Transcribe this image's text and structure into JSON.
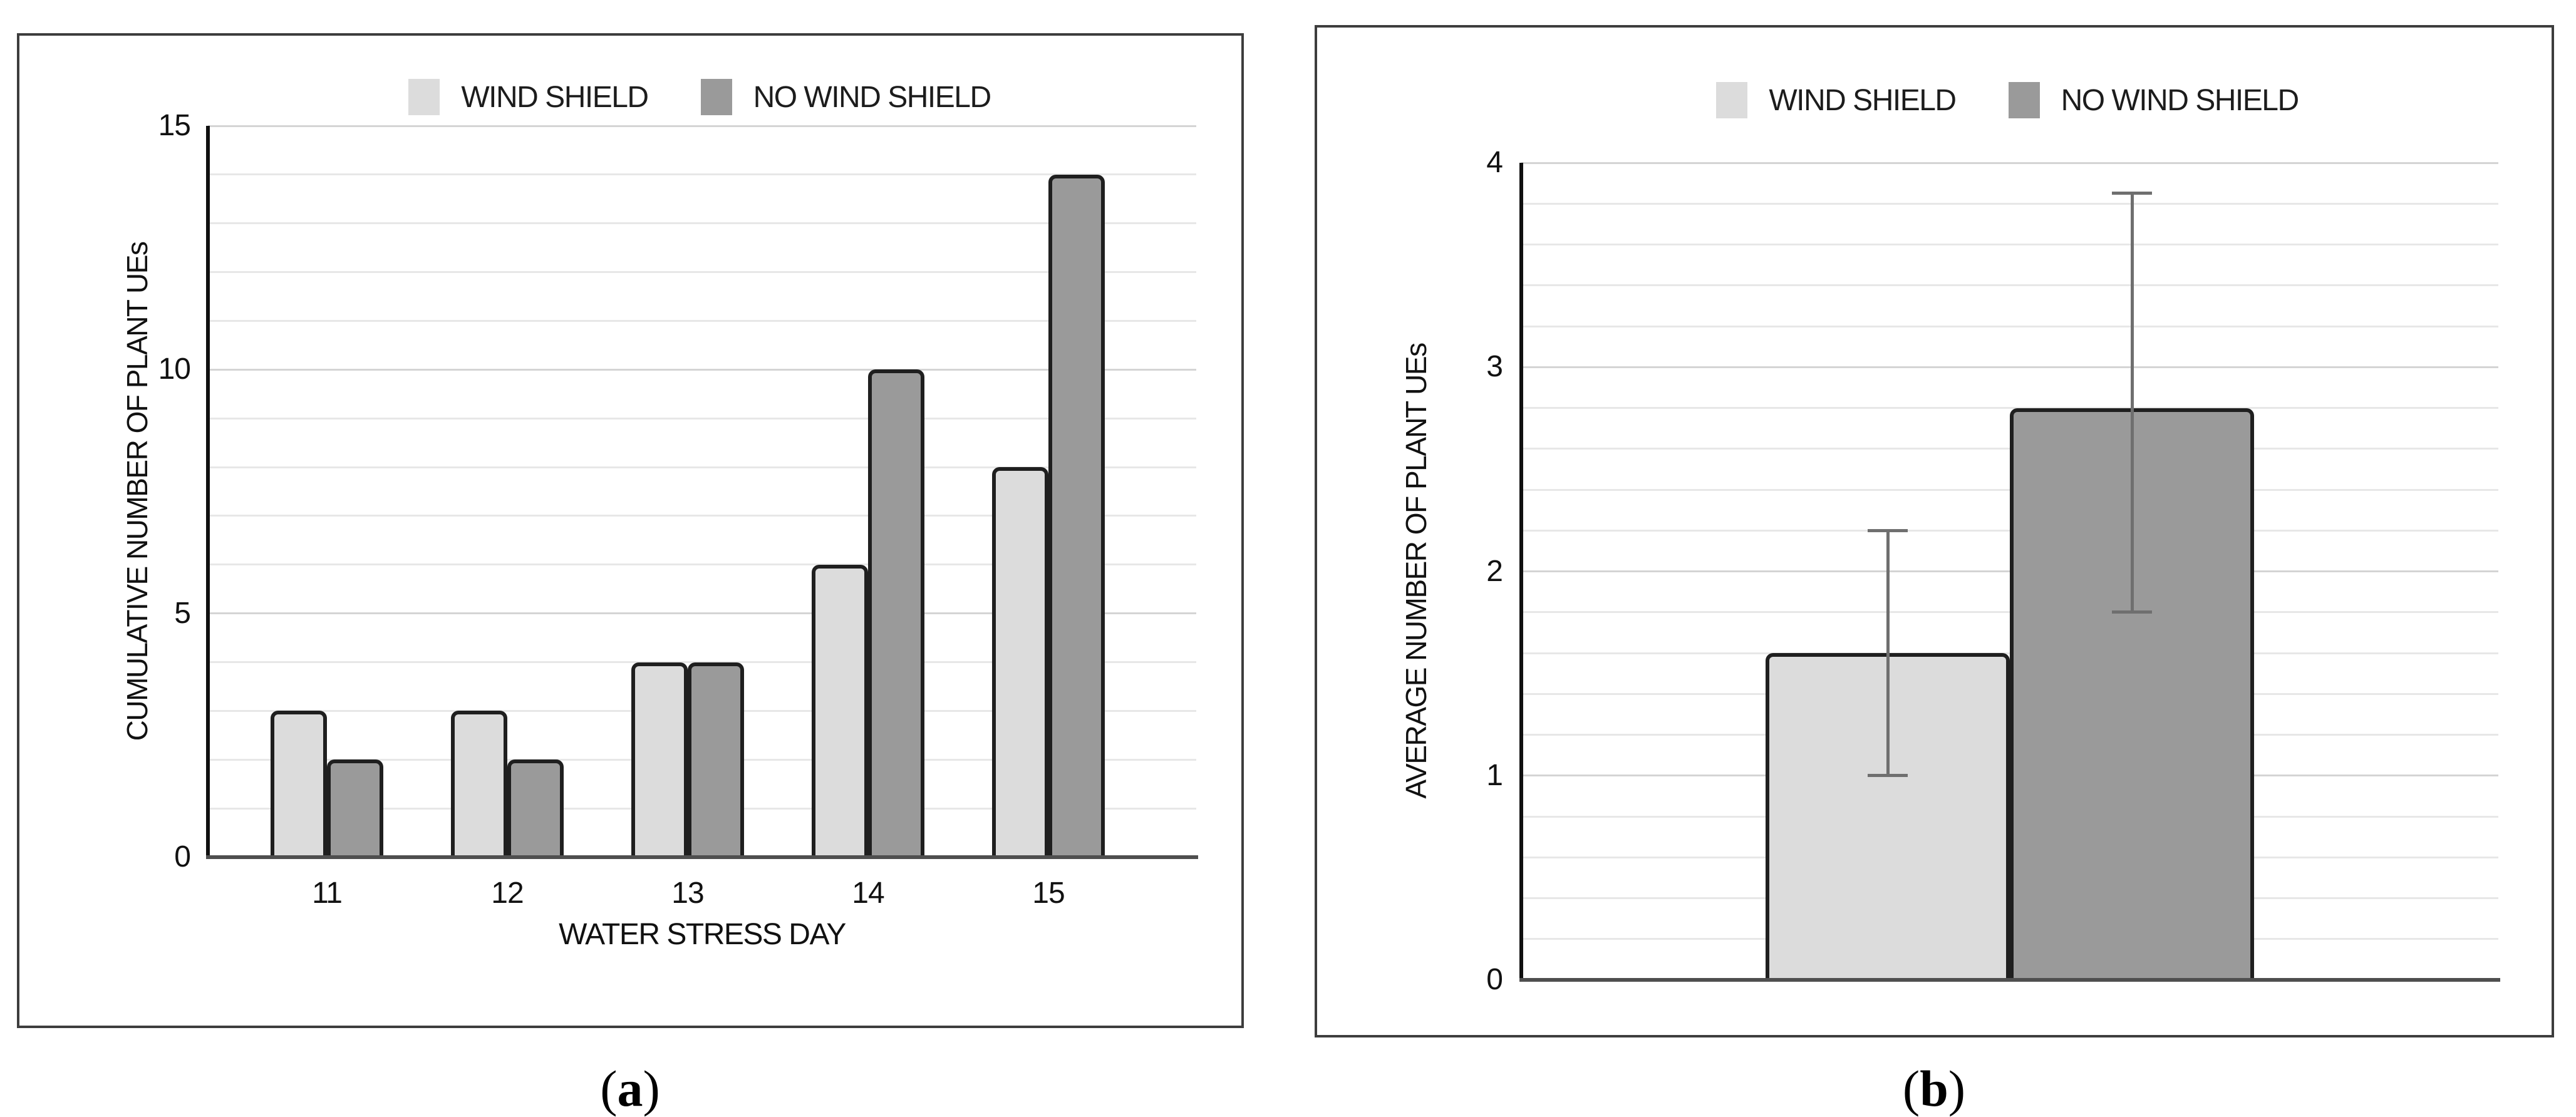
{
  "figure": {
    "captions": {
      "a": {
        "open": "(",
        "letter": "a",
        "close": ")"
      },
      "b": {
        "open": "(",
        "letter": "b",
        "close": ")"
      }
    }
  },
  "chart_data": [
    {
      "panel": "a",
      "type": "bar",
      "title": "",
      "xlabel": "WATER STRESS DAY",
      "ylabel": "CUMULATIVE NUMBER OF PLANT UEs",
      "categories": [
        "11",
        "12",
        "13",
        "14",
        "15"
      ],
      "series": [
        {
          "name": "WIND SHIELD",
          "color": "#dcdcdc",
          "values": [
            3,
            3,
            4,
            6,
            8
          ]
        },
        {
          "name": "NO WIND SHIELD",
          "color": "#9a9a9a",
          "values": [
            2,
            2,
            4,
            10,
            14
          ]
        }
      ],
      "ylim": [
        0,
        15
      ],
      "yticks": [
        0,
        5,
        10,
        15
      ],
      "minor_grid_step": 1,
      "grid": "horizontal",
      "legend_position": "top-center"
    },
    {
      "panel": "b",
      "type": "bar",
      "title": "",
      "xlabel": "",
      "ylabel": "AVERAGE NUMBER OF PLANT UEs",
      "categories": [
        ""
      ],
      "series": [
        {
          "name": "WIND SHIELD",
          "color": "#dcdcdc",
          "values": [
            1.6
          ],
          "error_low": [
            1.0
          ],
          "error_high": [
            2.2
          ]
        },
        {
          "name": "NO WIND SHIELD",
          "color": "#9a9a9a",
          "values": [
            2.8
          ],
          "error_low": [
            1.8
          ],
          "error_high": [
            3.85
          ]
        }
      ],
      "ylim": [
        0,
        4
      ],
      "yticks": [
        0,
        1,
        2,
        3,
        4
      ],
      "minor_grid_step": 0.2,
      "grid": "horizontal",
      "legend_position": "top-center"
    }
  ]
}
